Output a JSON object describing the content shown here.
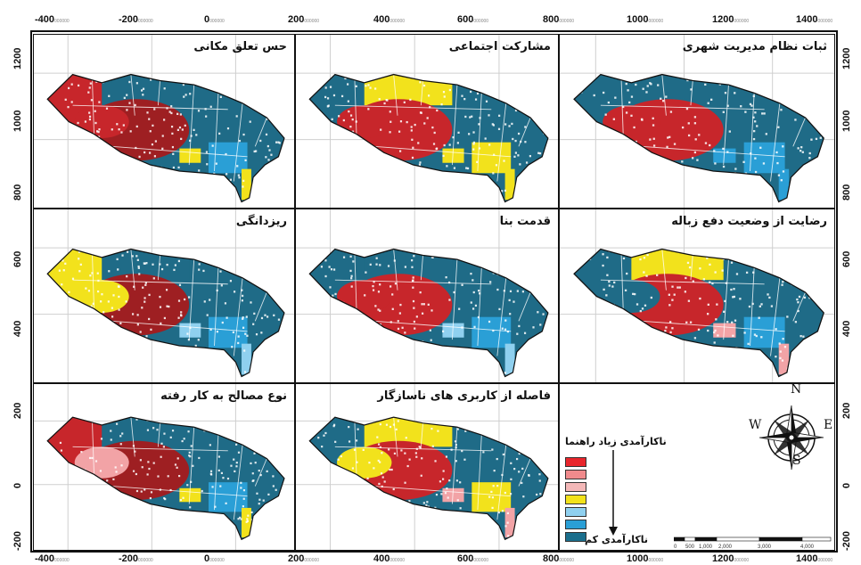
{
  "axis": {
    "top_ticks": [
      {
        "label": "-400",
        "sub": "000000"
      },
      {
        "label": "-200",
        "sub": "000000"
      },
      {
        "label": "0",
        "sub": "000000"
      },
      {
        "label": "200",
        "sub": "000000"
      },
      {
        "label": "400",
        "sub": "000000"
      },
      {
        "label": "600",
        "sub": "000000"
      },
      {
        "label": "800",
        "sub": "000000"
      },
      {
        "label": "1000",
        "sub": "000000"
      },
      {
        "label": "1200",
        "sub": "000000"
      },
      {
        "label": "1400",
        "sub": "000000"
      }
    ],
    "bottom_ticks": [
      {
        "label": "-400",
        "sub": "000000"
      },
      {
        "label": "-200",
        "sub": "000000"
      },
      {
        "label": "0",
        "sub": "000000"
      },
      {
        "label": "200",
        "sub": "000000"
      },
      {
        "label": "400",
        "sub": "000000"
      },
      {
        "label": "600",
        "sub": "000000"
      },
      {
        "label": "800",
        "sub": "000000"
      },
      {
        "label": "1000",
        "sub": "000000"
      },
      {
        "label": "1200",
        "sub": "000000"
      },
      {
        "label": "1400",
        "sub": "000000"
      }
    ],
    "left_ticks": [
      "1200",
      "1000",
      "800",
      "600",
      "400",
      "200",
      "0",
      "-200"
    ],
    "right_ticks": [
      "1200",
      "1000",
      "800",
      "600",
      "400",
      "200",
      "0",
      "-200"
    ]
  },
  "panels": [
    {
      "id": "p1",
      "title": "ثبات نظام مدیریت شهری"
    },
    {
      "id": "p2",
      "title": "مشارکت اجتماعی"
    },
    {
      "id": "p3",
      "title": "حس تعلق مکانی"
    },
    {
      "id": "p4",
      "title": "رضایت از وضعیت دفع زباله"
    },
    {
      "id": "p5",
      "title": "قدمت بنا"
    },
    {
      "id": "p6",
      "title": "ریزدانگی"
    },
    {
      "id": "p7",
      "title": "فاصله از کاربری های ناسازگار"
    },
    {
      "id": "p8",
      "title": "نوع مصالح به کار رفته"
    }
  ],
  "legend": {
    "title": "ناکارآمدی زیاد راهنما",
    "low_label": "ناکارآمدی کم",
    "colors": [
      "#e8262c",
      "#f08a8c",
      "#f4b8b8",
      "#f2e21c",
      "#8fd0ef",
      "#2a9fd6",
      "#1a6e8c"
    ]
  },
  "compass": {
    "n": "N",
    "s": "S",
    "e": "E",
    "w": "W"
  },
  "scale": {
    "labels": [
      "0",
      "500",
      "1,000",
      "2,000",
      "3,000",
      "4,000"
    ]
  },
  "colors": {
    "high": "#c92a2a",
    "mid": "#f2e21c",
    "low": "#1f6b87",
    "accent": "#2a9fd6"
  }
}
